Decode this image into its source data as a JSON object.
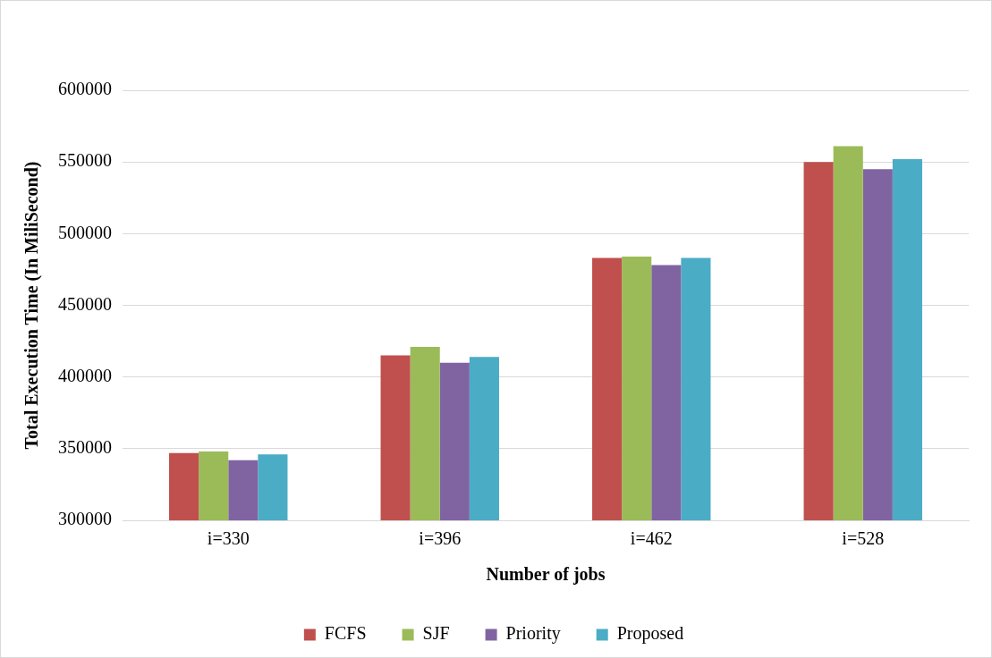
{
  "chart_data": {
    "type": "bar",
    "xlabel": "Number of jobs",
    "ylabel": "Total Execution Time (In MiliSecond)",
    "categories": [
      "i=330",
      "i=396",
      "i=462",
      "i=528"
    ],
    "series": [
      {
        "name": "FCFS",
        "color": "#c0504d",
        "values": [
          347000,
          415000,
          483000,
          550000
        ]
      },
      {
        "name": "SJF",
        "color": "#9bbb59",
        "values": [
          348000,
          421000,
          484000,
          561000
        ]
      },
      {
        "name": "Priority",
        "color": "#8064a2",
        "values": [
          342000,
          410000,
          478000,
          545000
        ]
      },
      {
        "name": "Proposed",
        "color": "#4bacc6",
        "values": [
          346000,
          414000,
          483000,
          552000
        ]
      }
    ],
    "ylim": [
      300000,
      600000
    ],
    "yticks": [
      300000,
      350000,
      400000,
      450000,
      500000,
      550000,
      600000
    ],
    "grid": "y",
    "legend": "bottom"
  }
}
